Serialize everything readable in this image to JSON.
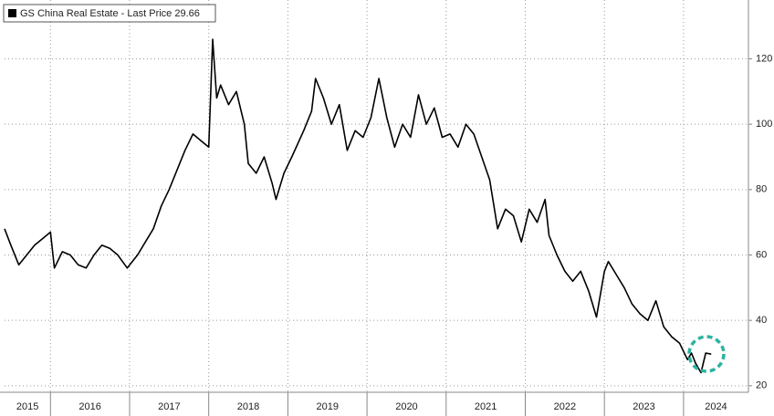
{
  "chart_data": {
    "type": "line",
    "series": [
      {
        "name": "GS China Real Estate - Last Price 29.66",
        "color": "#000000",
        "x": [
          2015.42,
          2015.5,
          2015.6,
          2015.7,
          2015.8,
          2015.9,
          2016.0,
          2016.05,
          2016.15,
          2016.25,
          2016.35,
          2016.45,
          2016.55,
          2016.65,
          2016.75,
          2016.85,
          2016.97,
          2017.1,
          2017.2,
          2017.3,
          2017.4,
          2017.5,
          2017.6,
          2017.7,
          2017.8,
          2017.9,
          2018.0,
          2018.05,
          2018.1,
          2018.15,
          2018.25,
          2018.35,
          2018.45,
          2018.5,
          2018.6,
          2018.7,
          2018.8,
          2018.85,
          2018.95,
          2019.05,
          2019.2,
          2019.3,
          2019.35,
          2019.45,
          2019.55,
          2019.65,
          2019.75,
          2019.85,
          2019.95,
          2020.05,
          2020.15,
          2020.25,
          2020.35,
          2020.45,
          2020.55,
          2020.65,
          2020.75,
          2020.85,
          2020.95,
          2021.05,
          2021.15,
          2021.25,
          2021.35,
          2021.45,
          2021.55,
          2021.65,
          2021.75,
          2021.85,
          2021.95,
          2022.05,
          2022.15,
          2022.25,
          2022.3,
          2022.4,
          2022.5,
          2022.6,
          2022.7,
          2022.8,
          2022.9,
          2023.0,
          2023.05,
          2023.15,
          2023.25,
          2023.35,
          2023.45,
          2023.55,
          2023.65,
          2023.75,
          2023.85,
          2023.95,
          2024.05,
          2024.1,
          2024.15,
          2024.22,
          2024.28,
          2024.35
        ],
        "values": [
          68,
          63,
          57,
          60,
          63,
          65,
          67,
          56,
          61,
          60,
          57,
          56,
          60,
          63,
          62,
          60,
          56,
          60,
          64,
          68,
          75,
          80,
          86,
          92,
          97,
          95,
          93,
          126,
          108,
          112,
          106,
          110,
          100,
          88,
          85,
          90,
          82,
          77,
          85,
          90,
          98,
          104,
          114,
          108,
          100,
          106,
          92,
          98,
          96,
          102,
          114,
          102,
          93,
          100,
          96,
          109,
          100,
          105,
          96,
          97,
          93,
          100,
          97,
          90,
          83,
          68,
          74,
          72,
          64,
          74,
          70,
          77,
          66,
          60,
          55,
          52,
          55,
          49,
          41,
          55,
          58,
          54,
          50,
          45,
          42,
          40,
          46,
          38,
          35,
          33,
          28,
          30,
          27,
          24,
          30,
          29.66
        ]
      }
    ],
    "xlim": [
      2015.42,
      2024.82
    ],
    "xticks": [
      2015,
      2016,
      2017,
      2018,
      2019,
      2020,
      2021,
      2022,
      2023,
      2024
    ],
    "ylim": [
      18,
      138
    ],
    "yticks": [
      20,
      40,
      60,
      80,
      100,
      120
    ],
    "grid": true
  }
}
